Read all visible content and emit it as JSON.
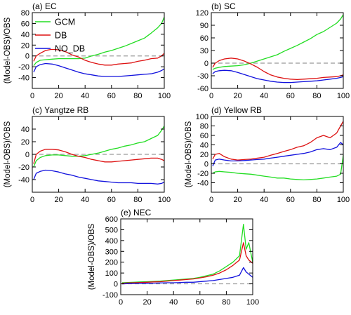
{
  "colors": {
    "GCM": "#22dd22",
    "DB": "#dd1111",
    "NO_DB": "#1111dd",
    "zero_line": "#999999"
  },
  "chart_data": [
    {
      "type": "line",
      "title": "(a) EC",
      "ylabel": "(Model-OBS)/OBS",
      "xlim": [
        0,
        100
      ],
      "ylim": [
        -60,
        80
      ],
      "xticks": [
        0,
        20,
        40,
        60,
        80,
        100
      ],
      "yticks": [
        -40,
        -20,
        0,
        20,
        40,
        60,
        80
      ],
      "reference_line": 0,
      "legend": {
        "placement": "top-left",
        "entries": [
          "GCM",
          "DB",
          "NO_DB"
        ]
      },
      "series": [
        {
          "name": "GCM",
          "x": [
            1,
            3,
            6,
            10,
            15,
            20,
            25,
            30,
            35,
            40,
            45,
            50,
            55,
            60,
            65,
            70,
            75,
            80,
            85,
            90,
            95,
            98,
            100
          ],
          "y": [
            -18,
            -12,
            -8,
            -7,
            -6,
            -5,
            -5,
            -5,
            -5,
            -4,
            0,
            3,
            7,
            10,
            14,
            18,
            23,
            28,
            33,
            42,
            52,
            60,
            72
          ]
        },
        {
          "name": "DB",
          "x": [
            1,
            3,
            6,
            10,
            14,
            18,
            22,
            26,
            30,
            35,
            40,
            45,
            50,
            55,
            60,
            65,
            70,
            75,
            80,
            85,
            90,
            95,
            98,
            100
          ],
          "y": [
            -10,
            0,
            5,
            10,
            12,
            12,
            10,
            7,
            2,
            -2,
            -8,
            -12,
            -15,
            -17,
            -17,
            -15,
            -14,
            -13,
            -10,
            -8,
            -5,
            -4,
            0,
            5
          ]
        },
        {
          "name": "NO_DB",
          "x": [
            1,
            3,
            6,
            10,
            15,
            20,
            25,
            30,
            35,
            40,
            45,
            50,
            55,
            60,
            65,
            70,
            75,
            80,
            85,
            90,
            95,
            98,
            100
          ],
          "y": [
            -30,
            -20,
            -16,
            -14,
            -15,
            -18,
            -22,
            -26,
            -30,
            -33,
            -35,
            -37,
            -38,
            -38,
            -38,
            -37,
            -36,
            -35,
            -34,
            -33,
            -30,
            -27,
            -24
          ]
        }
      ]
    },
    {
      "type": "line",
      "title": "(b) SC",
      "ylabel": "",
      "xlim": [
        0,
        100
      ],
      "ylim": [
        -60,
        120
      ],
      "xticks": [
        0,
        20,
        40,
        60,
        80,
        100
      ],
      "yticks": [
        -60,
        -30,
        0,
        30,
        60,
        90,
        120
      ],
      "reference_line": 0,
      "series": [
        {
          "name": "GCM",
          "x": [
            1,
            3,
            6,
            10,
            15,
            20,
            25,
            30,
            35,
            40,
            45,
            50,
            55,
            60,
            65,
            70,
            75,
            80,
            85,
            90,
            95,
            98,
            100
          ],
          "y": [
            -15,
            -12,
            -10,
            -8,
            -7,
            -6,
            -4,
            0,
            5,
            10,
            15,
            20,
            28,
            35,
            42,
            50,
            58,
            68,
            75,
            85,
            95,
            105,
            115
          ]
        },
        {
          "name": "DB",
          "x": [
            1,
            3,
            6,
            10,
            15,
            20,
            25,
            30,
            35,
            40,
            45,
            50,
            55,
            60,
            65,
            70,
            75,
            80,
            85,
            90,
            95,
            98,
            100
          ],
          "y": [
            -10,
            0,
            6,
            10,
            12,
            10,
            5,
            -2,
            -10,
            -20,
            -28,
            -33,
            -36,
            -38,
            -39,
            -38,
            -37,
            -36,
            -34,
            -33,
            -32,
            -30,
            -28
          ]
        },
        {
          "name": "NO_DB",
          "x": [
            1,
            3,
            6,
            10,
            15,
            20,
            25,
            30,
            35,
            40,
            45,
            50,
            55,
            60,
            65,
            70,
            75,
            80,
            85,
            90,
            95,
            98,
            100
          ],
          "y": [
            -25,
            -20,
            -18,
            -17,
            -18,
            -22,
            -27,
            -32,
            -37,
            -40,
            -43,
            -45,
            -46,
            -46,
            -45,
            -44,
            -43,
            -42,
            -40,
            -38,
            -36,
            -34,
            -32
          ]
        }
      ]
    },
    {
      "type": "line",
      "title": "(c) Yangtze RB",
      "ylabel": "(Model-OBS)/OBS",
      "xlim": [
        0,
        100
      ],
      "ylim": [
        -60,
        60
      ],
      "xticks": [
        0,
        20,
        40,
        60,
        80,
        100
      ],
      "yticks": [
        -40,
        -20,
        0,
        20,
        40
      ],
      "reference_line": 0,
      "series": [
        {
          "name": "GCM",
          "x": [
            1,
            3,
            6,
            10,
            15,
            20,
            25,
            30,
            35,
            40,
            45,
            50,
            55,
            60,
            65,
            70,
            75,
            80,
            85,
            90,
            95,
            98,
            100
          ],
          "y": [
            -20,
            -10,
            -5,
            -2,
            -1,
            -1,
            -2,
            -3,
            -3,
            -2,
            0,
            2,
            5,
            8,
            10,
            13,
            15,
            18,
            20,
            25,
            30,
            38,
            45
          ]
        },
        {
          "name": "DB",
          "x": [
            1,
            3,
            6,
            10,
            15,
            20,
            25,
            30,
            35,
            40,
            45,
            50,
            55,
            60,
            65,
            70,
            75,
            80,
            85,
            90,
            95,
            98,
            100
          ],
          "y": [
            -15,
            0,
            5,
            8,
            8,
            7,
            4,
            0,
            -3,
            -5,
            -8,
            -10,
            -12,
            -12,
            -11,
            -10,
            -9,
            -8,
            -7,
            -6,
            -6,
            -8,
            -10
          ]
        },
        {
          "name": "NO_DB",
          "x": [
            1,
            3,
            6,
            10,
            15,
            20,
            25,
            30,
            35,
            40,
            45,
            50,
            55,
            60,
            65,
            70,
            75,
            80,
            85,
            90,
            95,
            98,
            100
          ],
          "y": [
            -40,
            -30,
            -27,
            -25,
            -26,
            -28,
            -31,
            -33,
            -36,
            -38,
            -40,
            -42,
            -43,
            -44,
            -45,
            -45,
            -45,
            -46,
            -46,
            -46,
            -47,
            -46,
            -44
          ]
        }
      ]
    },
    {
      "type": "line",
      "title": "(d) Yellow RB",
      "ylabel": "(Model-OBS)/OBS",
      "xlim": [
        0,
        100
      ],
      "ylim": [
        -60,
        100
      ],
      "xticks": [
        0,
        20,
        40,
        60,
        80,
        100
      ],
      "yticks": [
        -40,
        -20,
        0,
        20,
        40,
        60,
        80,
        100
      ],
      "reference_line": 0,
      "series": [
        {
          "name": "GCM",
          "x": [
            1,
            3,
            6,
            10,
            15,
            20,
            25,
            30,
            35,
            40,
            45,
            50,
            55,
            60,
            65,
            70,
            75,
            80,
            85,
            90,
            95,
            98,
            100
          ],
          "y": [
            -20,
            -17,
            -16,
            -17,
            -18,
            -20,
            -21,
            -22,
            -24,
            -26,
            -28,
            -30,
            -30,
            -32,
            -33,
            -34,
            -33,
            -32,
            -30,
            -28,
            -26,
            -22,
            18
          ]
        },
        {
          "name": "DB",
          "x": [
            1,
            3,
            6,
            10,
            15,
            20,
            25,
            30,
            35,
            40,
            45,
            50,
            55,
            60,
            65,
            70,
            75,
            80,
            85,
            90,
            95,
            98,
            100
          ],
          "y": [
            10,
            20,
            22,
            15,
            10,
            8,
            9,
            10,
            12,
            14,
            18,
            22,
            26,
            30,
            35,
            38,
            45,
            55,
            60,
            55,
            65,
            80,
            90
          ]
        },
        {
          "name": "NO_DB",
          "x": [
            1,
            3,
            6,
            10,
            15,
            20,
            25,
            30,
            35,
            40,
            45,
            50,
            55,
            60,
            65,
            70,
            75,
            80,
            85,
            90,
            95,
            98,
            100
          ],
          "y": [
            -5,
            8,
            10,
            8,
            6,
            6,
            7,
            8,
            9,
            10,
            12,
            14,
            16,
            18,
            20,
            22,
            25,
            30,
            32,
            30,
            35,
            45,
            40
          ]
        }
      ]
    },
    {
      "type": "line",
      "title": "(e) NEC",
      "ylabel": "(Model-OBS)/OBS",
      "xlim": [
        0,
        100
      ],
      "ylim": [
        -100,
        600
      ],
      "xticks": [
        0,
        20,
        40,
        60,
        80,
        100
      ],
      "yticks": [
        -100,
        0,
        100,
        200,
        300,
        400,
        500,
        600
      ],
      "reference_line": 0,
      "series": [
        {
          "name": "GCM",
          "x": [
            1,
            5,
            10,
            15,
            20,
            25,
            30,
            35,
            40,
            45,
            50,
            55,
            60,
            65,
            70,
            75,
            80,
            85,
            90,
            93,
            95,
            97,
            100
          ],
          "y": [
            10,
            12,
            15,
            18,
            20,
            22,
            25,
            30,
            35,
            40,
            45,
            50,
            60,
            75,
            90,
            120,
            160,
            200,
            260,
            550,
            320,
            380,
            200
          ]
        },
        {
          "name": "DB",
          "x": [
            1,
            5,
            10,
            15,
            20,
            25,
            30,
            35,
            40,
            45,
            50,
            55,
            60,
            65,
            70,
            75,
            80,
            85,
            90,
            93,
            95,
            97,
            100
          ],
          "y": [
            5,
            8,
            10,
            12,
            15,
            18,
            20,
            25,
            30,
            35,
            40,
            45,
            55,
            65,
            80,
            100,
            130,
            170,
            220,
            380,
            260,
            220,
            190
          ]
        },
        {
          "name": "NO_DB",
          "x": [
            1,
            5,
            10,
            15,
            20,
            25,
            30,
            35,
            40,
            45,
            50,
            55,
            60,
            65,
            70,
            75,
            80,
            85,
            90,
            93,
            95,
            97,
            100
          ],
          "y": [
            0,
            2,
            3,
            5,
            5,
            6,
            8,
            10,
            10,
            12,
            15,
            15,
            20,
            25,
            30,
            40,
            50,
            60,
            80,
            150,
            110,
            90,
            60
          ]
        }
      ]
    }
  ]
}
